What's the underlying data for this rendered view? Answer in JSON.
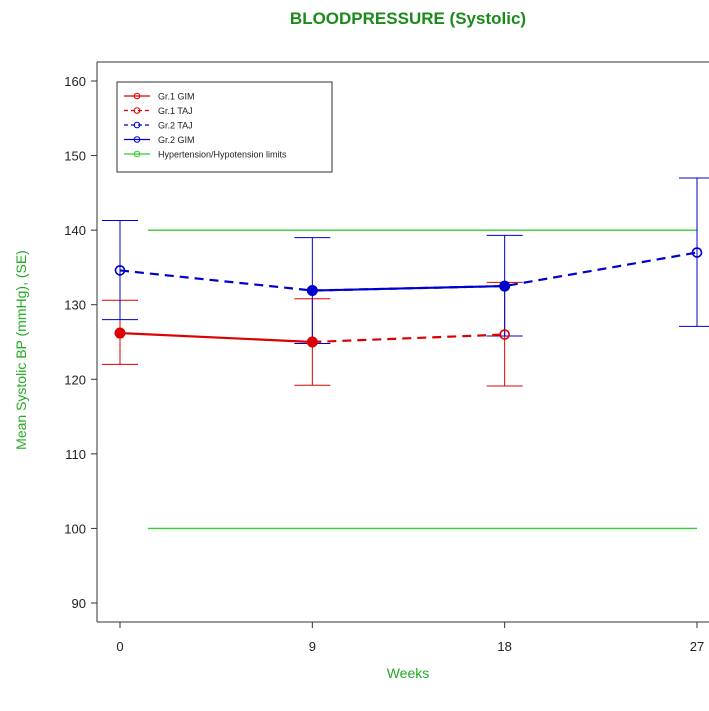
{
  "chart_data": {
    "type": "line",
    "title": "BLOODPRESSURE (Systolic)",
    "xlabel": "Weeks",
    "ylabel": "Mean Systolic BP (mmHg), (SE)",
    "x_ticks": [
      "0",
      "9",
      "18",
      "27"
    ],
    "y_ticks": [
      "90",
      "100",
      "110",
      "120",
      "130",
      "140",
      "150",
      "160"
    ],
    "xlim": [
      0,
      27
    ],
    "ylim": [
      88,
      163
    ],
    "legend_position": "top-left",
    "series": [
      {
        "name": "Gr.1 GIM",
        "color": "#dd0000",
        "line_style": "solid",
        "marker": "filled",
        "points": [
          {
            "x": 0,
            "y": 126.2,
            "lo": 122.0,
            "hi": 130.6
          },
          {
            "x": 9,
            "y": 125.0,
            "lo": 119.2,
            "hi": 130.8
          }
        ]
      },
      {
        "name": "Gr.1 TAJ",
        "color": "#dd0000",
        "line_style": "dashed",
        "marker": "open",
        "points": [
          {
            "x": 9,
            "y": 125.0
          },
          {
            "x": 18,
            "y": 126.0,
            "lo": 119.1,
            "hi": 133.0
          }
        ]
      },
      {
        "name": "Gr.2 TAJ",
        "color": "#0000cc",
        "line_style": "dashed",
        "marker": "open",
        "points": [
          {
            "x": 0,
            "y": 134.6,
            "lo": 128.0,
            "hi": 141.3
          },
          {
            "x": 9,
            "y": 131.9
          },
          {
            "x": 18,
            "y": 132.5
          },
          {
            "x": 27,
            "y": 137.0,
            "lo": 127.1,
            "hi": 147.0
          }
        ]
      },
      {
        "name": "Gr.2 GIM",
        "color": "#0000cc",
        "line_style": "solid",
        "marker": "filled",
        "points": [
          {
            "x": 9,
            "y": 131.9,
            "lo": 124.8,
            "hi": 139.0
          },
          {
            "x": 18,
            "y": 132.5,
            "lo": 125.8,
            "hi": 139.3
          }
        ]
      },
      {
        "name": "Hypertension/Hypotension limits",
        "color": "#33cc33",
        "line_style": "solid",
        "marker": "open",
        "hlines": [
          140,
          100
        ]
      }
    ]
  }
}
